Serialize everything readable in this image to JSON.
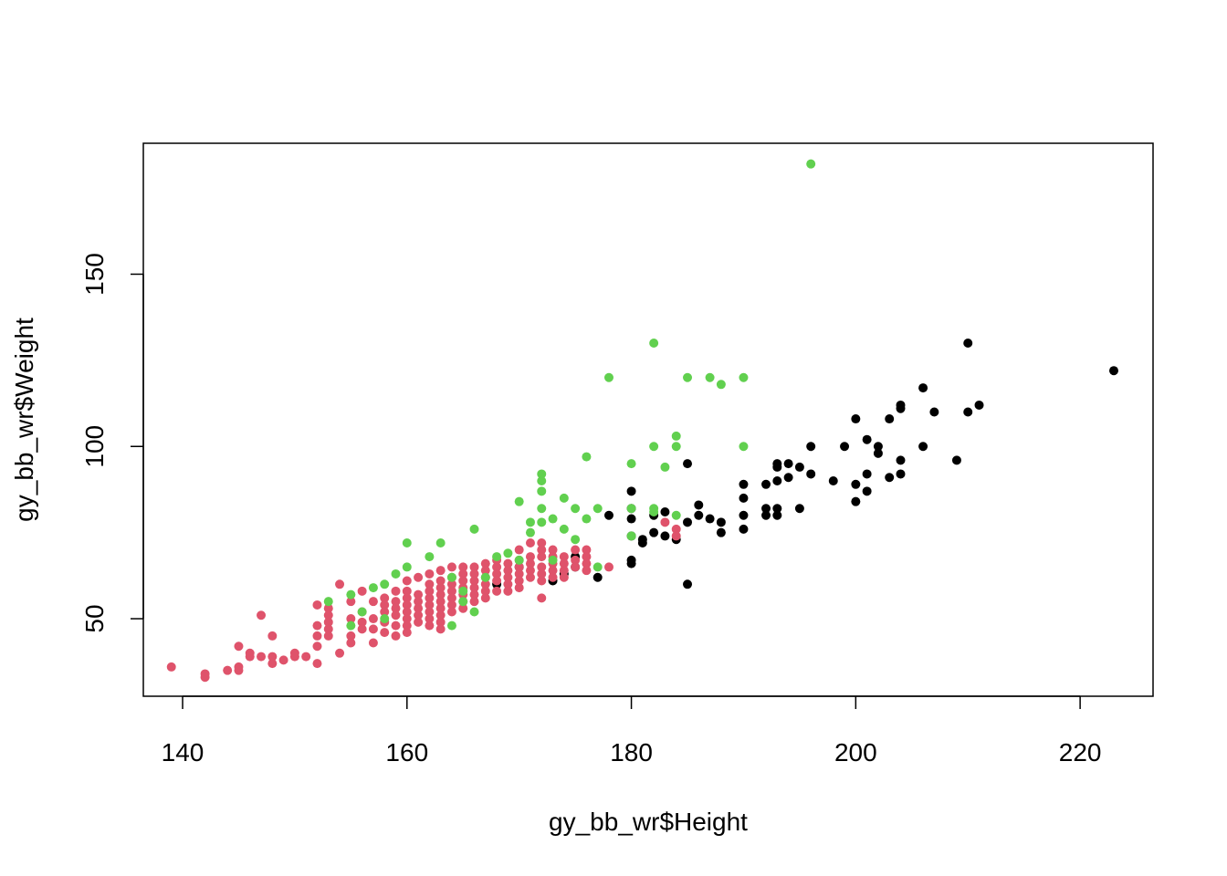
{
  "chart_data": {
    "type": "scatter",
    "xlabel": "gy_bb_wr$Height",
    "ylabel": "gy_bb_wr$Weight",
    "xlim": [
      136.5,
      226.5
    ],
    "ylim": [
      27.5,
      188
    ],
    "xticks": [
      140,
      160,
      180,
      200,
      220
    ],
    "yticks": [
      50,
      100,
      150
    ],
    "colors": [
      "#000000",
      "#DF536B",
      "#61D04F"
    ],
    "series": [
      {
        "color": "#000000",
        "points": [
          [
            180,
            87
          ],
          [
            180,
            82
          ],
          [
            180,
            79
          ],
          [
            180,
            74
          ],
          [
            180,
            66
          ],
          [
            180,
            67
          ],
          [
            182,
            80
          ],
          [
            182,
            75
          ],
          [
            181,
            72
          ],
          [
            181,
            73
          ],
          [
            183,
            81
          ],
          [
            183,
            74
          ],
          [
            184,
            73
          ],
          [
            185,
            95
          ],
          [
            185,
            78
          ],
          [
            185,
            60
          ],
          [
            186,
            83
          ],
          [
            186,
            80
          ],
          [
            187,
            79
          ],
          [
            188,
            78
          ],
          [
            188,
            75
          ],
          [
            190,
            89
          ],
          [
            190,
            85
          ],
          [
            190,
            80
          ],
          [
            190,
            76
          ],
          [
            192,
            89
          ],
          [
            192,
            82
          ],
          [
            192,
            80
          ],
          [
            193,
            95
          ],
          [
            193,
            94
          ],
          [
            193,
            90
          ],
          [
            193,
            82
          ],
          [
            193,
            80
          ],
          [
            194,
            95
          ],
          [
            194,
            91
          ],
          [
            195,
            94
          ],
          [
            195,
            82
          ],
          [
            196,
            100
          ],
          [
            196,
            92
          ],
          [
            198,
            90
          ],
          [
            199,
            100
          ],
          [
            200,
            108
          ],
          [
            200,
            89
          ],
          [
            200,
            84
          ],
          [
            201,
            102
          ],
          [
            201,
            92
          ],
          [
            201,
            87
          ],
          [
            202,
            100
          ],
          [
            202,
            98
          ],
          [
            203,
            108
          ],
          [
            203,
            91
          ],
          [
            204,
            112
          ],
          [
            204,
            111
          ],
          [
            204,
            96
          ],
          [
            204,
            92
          ],
          [
            206,
            117
          ],
          [
            206,
            100
          ],
          [
            207,
            110
          ],
          [
            209,
            96
          ],
          [
            210,
            130
          ],
          [
            210,
            110
          ],
          [
            211,
            112
          ],
          [
            223,
            122
          ],
          [
            178,
            80
          ],
          [
            177,
            62
          ],
          [
            175,
            68
          ],
          [
            175,
            65
          ],
          [
            174,
            63
          ],
          [
            173,
            61
          ],
          [
            168,
            60
          ],
          [
            170,
            65
          ]
        ]
      },
      {
        "color": "#DF536B",
        "points": [
          [
            139,
            36
          ],
          [
            142,
            34
          ],
          [
            142,
            33
          ],
          [
            144,
            35
          ],
          [
            145,
            42
          ],
          [
            145,
            36
          ],
          [
            145,
            35
          ],
          [
            146,
            40
          ],
          [
            146,
            39
          ],
          [
            147,
            51
          ],
          [
            147,
            39
          ],
          [
            148,
            45
          ],
          [
            148,
            39
          ],
          [
            148,
            37
          ],
          [
            149,
            38
          ],
          [
            150,
            40
          ],
          [
            150,
            39
          ],
          [
            151,
            39
          ],
          [
            152,
            54
          ],
          [
            152,
            48
          ],
          [
            152,
            45
          ],
          [
            152,
            42
          ],
          [
            152,
            37
          ],
          [
            153,
            53
          ],
          [
            153,
            51
          ],
          [
            153,
            49
          ],
          [
            153,
            47
          ],
          [
            153,
            45
          ],
          [
            154,
            60
          ],
          [
            154,
            40
          ],
          [
            155,
            55
          ],
          [
            155,
            50
          ],
          [
            155,
            45
          ],
          [
            155,
            43
          ],
          [
            156,
            58
          ],
          [
            156,
            52
          ],
          [
            156,
            49
          ],
          [
            156,
            47
          ],
          [
            157,
            55
          ],
          [
            157,
            50
          ],
          [
            157,
            47
          ],
          [
            157,
            43
          ],
          [
            158,
            56
          ],
          [
            158,
            54
          ],
          [
            158,
            52
          ],
          [
            158,
            49
          ],
          [
            158,
            46
          ],
          [
            159,
            58
          ],
          [
            159,
            55
          ],
          [
            159,
            53
          ],
          [
            159,
            51
          ],
          [
            159,
            48
          ],
          [
            159,
            45
          ],
          [
            160,
            61
          ],
          [
            160,
            58
          ],
          [
            160,
            56
          ],
          [
            160,
            54
          ],
          [
            160,
            52
          ],
          [
            160,
            50
          ],
          [
            160,
            48
          ],
          [
            160,
            46
          ],
          [
            161,
            62
          ],
          [
            161,
            57
          ],
          [
            161,
            55
          ],
          [
            161,
            53
          ],
          [
            161,
            51
          ],
          [
            161,
            49
          ],
          [
            162,
            63
          ],
          [
            162,
            60
          ],
          [
            162,
            58
          ],
          [
            162,
            56
          ],
          [
            162,
            54
          ],
          [
            162,
            52
          ],
          [
            162,
            50
          ],
          [
            162,
            48
          ],
          [
            163,
            64
          ],
          [
            163,
            61
          ],
          [
            163,
            59
          ],
          [
            163,
            57
          ],
          [
            163,
            55
          ],
          [
            163,
            53
          ],
          [
            163,
            51
          ],
          [
            163,
            49
          ],
          [
            163,
            47
          ],
          [
            164,
            65
          ],
          [
            164,
            62
          ],
          [
            164,
            60
          ],
          [
            164,
            58
          ],
          [
            164,
            56
          ],
          [
            164,
            54
          ],
          [
            164,
            52
          ],
          [
            165,
            65
          ],
          [
            165,
            63
          ],
          [
            165,
            61
          ],
          [
            165,
            59
          ],
          [
            165,
            57
          ],
          [
            165,
            55
          ],
          [
            165,
            53
          ],
          [
            166,
            65
          ],
          [
            166,
            63
          ],
          [
            166,
            61
          ],
          [
            166,
            59
          ],
          [
            166,
            57
          ],
          [
            166,
            55
          ],
          [
            167,
            66
          ],
          [
            167,
            64
          ],
          [
            167,
            62
          ],
          [
            167,
            60
          ],
          [
            167,
            58
          ],
          [
            167,
            56
          ],
          [
            168,
            67
          ],
          [
            168,
            65
          ],
          [
            168,
            63
          ],
          [
            168,
            61
          ],
          [
            168,
            58
          ],
          [
            169,
            66
          ],
          [
            169,
            64
          ],
          [
            169,
            62
          ],
          [
            169,
            60
          ],
          [
            169,
            58
          ],
          [
            170,
            70
          ],
          [
            170,
            67
          ],
          [
            170,
            65
          ],
          [
            170,
            63
          ],
          [
            170,
            61
          ],
          [
            170,
            59
          ],
          [
            171,
            72
          ],
          [
            171,
            68
          ],
          [
            171,
            66
          ],
          [
            171,
            64
          ],
          [
            171,
            62
          ],
          [
            172,
            72
          ],
          [
            172,
            70
          ],
          [
            172,
            68
          ],
          [
            172,
            65
          ],
          [
            172,
            63
          ],
          [
            172,
            61
          ],
          [
            172,
            56
          ],
          [
            173,
            70
          ],
          [
            173,
            68
          ],
          [
            173,
            66
          ],
          [
            173,
            64
          ],
          [
            173,
            62
          ],
          [
            174,
            68
          ],
          [
            174,
            66
          ],
          [
            174,
            64
          ],
          [
            174,
            62
          ],
          [
            175,
            70
          ],
          [
            175,
            67
          ],
          [
            175,
            65
          ],
          [
            176,
            70
          ],
          [
            176,
            68
          ],
          [
            176,
            66
          ],
          [
            176,
            64
          ],
          [
            178,
            65
          ],
          [
            183,
            78
          ],
          [
            184,
            76
          ],
          [
            184,
            74
          ]
        ]
      },
      {
        "color": "#61D04F",
        "points": [
          [
            153,
            55
          ],
          [
            155,
            57
          ],
          [
            155,
            48
          ],
          [
            156,
            52
          ],
          [
            157,
            59
          ],
          [
            158,
            50
          ],
          [
            158,
            60
          ],
          [
            159,
            63
          ],
          [
            160,
            72
          ],
          [
            160,
            65
          ],
          [
            162,
            68
          ],
          [
            163,
            72
          ],
          [
            164,
            62
          ],
          [
            164,
            48
          ],
          [
            165,
            55
          ],
          [
            165,
            58
          ],
          [
            166,
            52
          ],
          [
            166,
            76
          ],
          [
            167,
            62
          ],
          [
            168,
            68
          ],
          [
            169,
            69
          ],
          [
            170,
            84
          ],
          [
            170,
            67
          ],
          [
            171,
            78
          ],
          [
            171,
            75
          ],
          [
            172,
            92
          ],
          [
            172,
            90
          ],
          [
            172,
            87
          ],
          [
            172,
            82
          ],
          [
            172,
            78
          ],
          [
            173,
            79
          ],
          [
            173,
            67
          ],
          [
            174,
            85
          ],
          [
            174,
            76
          ],
          [
            175,
            82
          ],
          [
            175,
            73
          ],
          [
            176,
            97
          ],
          [
            176,
            79
          ],
          [
            177,
            82
          ],
          [
            177,
            65
          ],
          [
            178,
            120
          ],
          [
            180,
            95
          ],
          [
            180,
            82
          ],
          [
            180,
            74
          ],
          [
            182,
            130
          ],
          [
            182,
            100
          ],
          [
            182,
            82
          ],
          [
            182,
            81
          ],
          [
            183,
            94
          ],
          [
            184,
            103
          ],
          [
            184,
            100
          ],
          [
            184,
            80
          ],
          [
            185,
            120
          ],
          [
            187,
            120
          ],
          [
            188,
            118
          ],
          [
            190,
            120
          ],
          [
            190,
            100
          ],
          [
            196,
            182
          ]
        ]
      }
    ]
  }
}
